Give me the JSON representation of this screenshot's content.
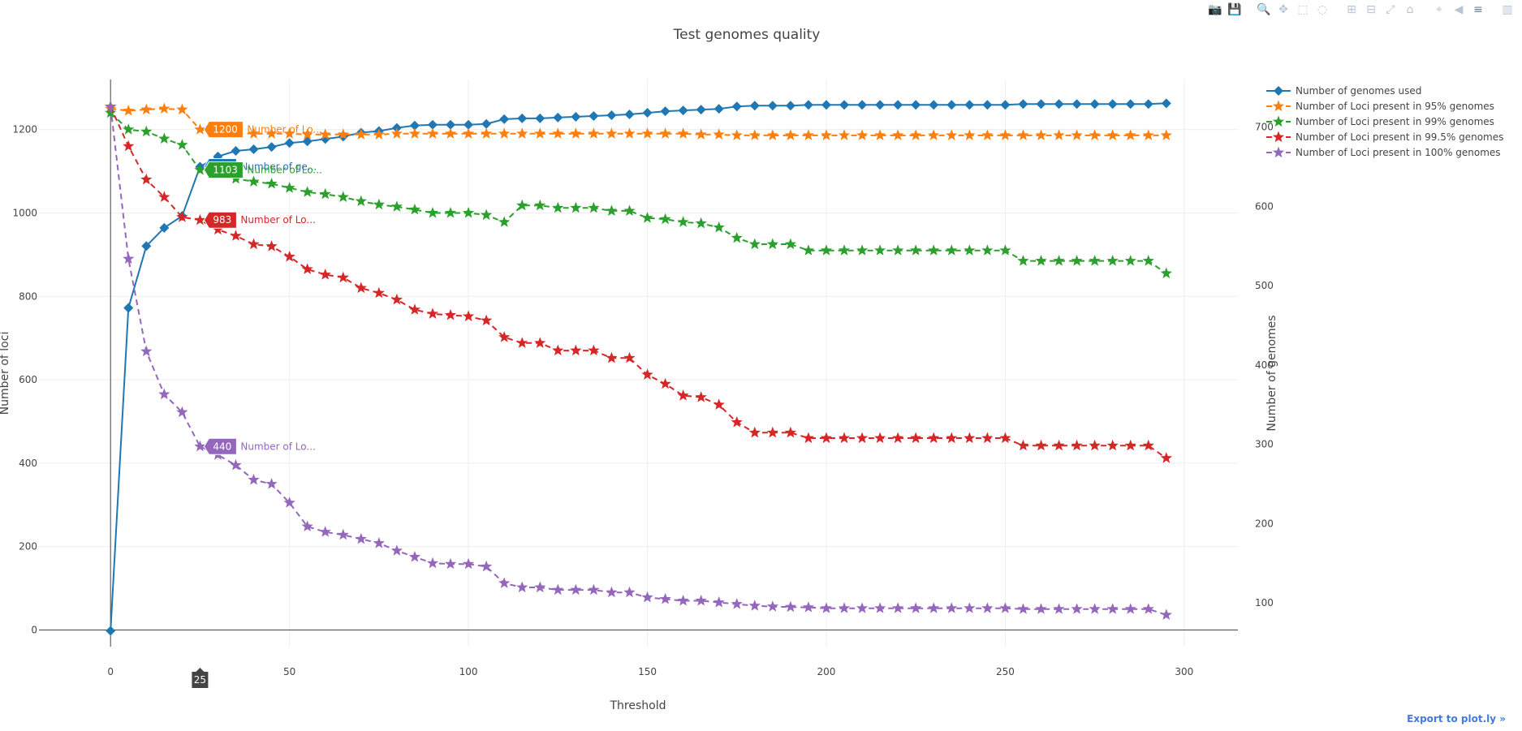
{
  "toolbar": {
    "buttons": [
      {
        "name": "camera-icon",
        "glyph": "📷",
        "group": 0
      },
      {
        "name": "save-icon",
        "glyph": "💾",
        "group": 0
      },
      {
        "name": "zoom-icon",
        "glyph": "🔍",
        "group": 1,
        "active": true
      },
      {
        "name": "pan-icon",
        "glyph": "✥",
        "group": 1
      },
      {
        "name": "box-select-icon",
        "glyph": "⬚",
        "group": 1
      },
      {
        "name": "lasso-select-icon",
        "glyph": "◌",
        "group": 1
      },
      {
        "name": "zoom-in-icon",
        "glyph": "⊞",
        "group": 2
      },
      {
        "name": "zoom-out-icon",
        "glyph": "⊟",
        "group": 2
      },
      {
        "name": "autoscale-icon",
        "glyph": "⤢",
        "group": 2
      },
      {
        "name": "reset-axes-icon",
        "glyph": "⌂",
        "group": 2
      },
      {
        "name": "spikelines-icon",
        "glyph": "⌖",
        "group": 3
      },
      {
        "name": "hover-closest-icon",
        "glyph": "◀",
        "group": 3
      },
      {
        "name": "hover-compare-icon",
        "glyph": "≡",
        "group": 3,
        "active": true
      },
      {
        "name": "plotly-logo-icon",
        "glyph": "▥",
        "group": 4
      }
    ],
    "export_label": "Export to plot.ly »"
  },
  "chart_data": {
    "type": "line",
    "title": "Test genomes quality",
    "xlabel": "Threshold",
    "ylabel": "Number of loci",
    "y2label": "Number of genomes",
    "xlim": [
      -20,
      315
    ],
    "ylim": [
      -40,
      1320
    ],
    "y2lim": [
      45,
      760
    ],
    "x_ticks": [
      0,
      50,
      100,
      150,
      200,
      250,
      300
    ],
    "y_ticks": [
      0,
      200,
      400,
      600,
      800,
      1000,
      1200
    ],
    "y2_ticks": [
      100,
      200,
      300,
      400,
      500,
      600,
      700
    ],
    "grid": true,
    "legend_position": "top-right",
    "x": [
      0,
      5,
      10,
      15,
      20,
      25,
      30,
      35,
      40,
      45,
      50,
      55,
      60,
      65,
      70,
      75,
      80,
      85,
      90,
      95,
      100,
      105,
      110,
      115,
      120,
      125,
      130,
      135,
      140,
      145,
      150,
      155,
      160,
      165,
      170,
      175,
      180,
      185,
      190,
      195,
      200,
      205,
      210,
      215,
      220,
      225,
      230,
      235,
      240,
      245,
      250,
      255,
      260,
      265,
      270,
      275,
      280,
      285,
      290,
      295
    ],
    "series": [
      {
        "name": "Number of genomes used",
        "axis": "y2",
        "color": "#1f77b4",
        "marker": "diamond",
        "dash": "solid",
        "values": [
          65,
          472,
          550,
          573,
          588,
          650,
          663,
          670,
          672,
          675,
          680,
          682,
          685,
          688,
          693,
          695,
          699,
          702,
          703,
          703,
          703,
          704,
          710,
          711,
          711,
          712,
          713,
          714,
          715,
          716,
          718,
          720,
          721,
          722,
          723,
          726,
          727,
          727,
          727,
          728,
          728,
          728,
          728,
          728,
          728,
          728,
          728,
          728,
          728,
          728,
          728,
          729,
          729,
          729,
          729,
          729,
          729,
          729,
          729,
          730
        ]
      },
      {
        "name": "Number of Loci present in 95% genomes",
        "axis": "y",
        "color": "#ff7f0e",
        "marker": "star",
        "dash": "dash",
        "values": [
          1250,
          1245,
          1248,
          1250,
          1248,
          1200,
          1195,
          1192,
          1190,
          1190,
          1190,
          1188,
          1188,
          1188,
          1188,
          1188,
          1190,
          1190,
          1190,
          1190,
          1190,
          1190,
          1190,
          1190,
          1190,
          1190,
          1190,
          1190,
          1190,
          1190,
          1190,
          1190,
          1190,
          1188,
          1188,
          1186,
          1186,
          1186,
          1186,
          1186,
          1186,
          1186,
          1186,
          1186,
          1186,
          1186,
          1186,
          1186,
          1186,
          1186,
          1186,
          1186,
          1186,
          1186,
          1186,
          1186,
          1186,
          1186,
          1186,
          1186
        ]
      },
      {
        "name": "Number of Loci present in 99% genomes",
        "axis": "y",
        "color": "#2ca02c",
        "marker": "star",
        "dash": "dash",
        "values": [
          1240,
          1200,
          1195,
          1178,
          1163,
          1103,
          1095,
          1082,
          1075,
          1070,
          1060,
          1050,
          1045,
          1038,
          1028,
          1020,
          1015,
          1008,
          1000,
          1000,
          1000,
          995,
          978,
          1018,
          1018,
          1012,
          1012,
          1012,
          1005,
          1005,
          988,
          985,
          978,
          975,
          965,
          940,
          925,
          925,
          925,
          910,
          910,
          910,
          910,
          910,
          910,
          910,
          910,
          910,
          910,
          910,
          910,
          885,
          885,
          885,
          885,
          885,
          885,
          885,
          885,
          855
        ]
      },
      {
        "name": "Number of Loci present in 99.5% genomes",
        "axis": "y",
        "color": "#d62728",
        "marker": "star",
        "dash": "dash",
        "values": [
          1255,
          1160,
          1080,
          1038,
          990,
          983,
          960,
          945,
          925,
          920,
          895,
          865,
          852,
          845,
          820,
          808,
          792,
          768,
          758,
          755,
          752,
          742,
          702,
          688,
          688,
          670,
          670,
          670,
          652,
          652,
          612,
          590,
          562,
          558,
          540,
          498,
          473,
          473,
          473,
          460,
          460,
          460,
          460,
          460,
          460,
          460,
          460,
          460,
          460,
          460,
          460,
          442,
          442,
          442,
          442,
          442,
          442,
          442,
          442,
          412
        ]
      },
      {
        "name": "Number of Loci present in 100% genomes",
        "axis": "y",
        "color": "#9467bd",
        "marker": "star",
        "dash": "dash",
        "values": [
          1255,
          890,
          668,
          565,
          522,
          440,
          420,
          395,
          360,
          350,
          305,
          248,
          235,
          228,
          218,
          208,
          190,
          175,
          160,
          158,
          158,
          152,
          112,
          102,
          102,
          96,
          96,
          96,
          90,
          90,
          78,
          74,
          70,
          70,
          66,
          62,
          58,
          56,
          55,
          54,
          52,
          52,
          52,
          52,
          52,
          52,
          52,
          52,
          52,
          52,
          52,
          50,
          50,
          50,
          50,
          50,
          50,
          50,
          50,
          36
        ]
      }
    ],
    "hover": {
      "x_label": "25",
      "labels": [
        {
          "series": 1,
          "value": "1200",
          "text": "Number of Lo..."
        },
        {
          "series": 0,
          "value": "650",
          "text": "Number of ge..."
        },
        {
          "series": 2,
          "value": "1103",
          "text": "Number of Lo..."
        },
        {
          "series": 3,
          "value": "983",
          "text": "Number of Lo..."
        },
        {
          "series": 4,
          "value": "440",
          "text": "Number of Lo..."
        }
      ]
    }
  }
}
